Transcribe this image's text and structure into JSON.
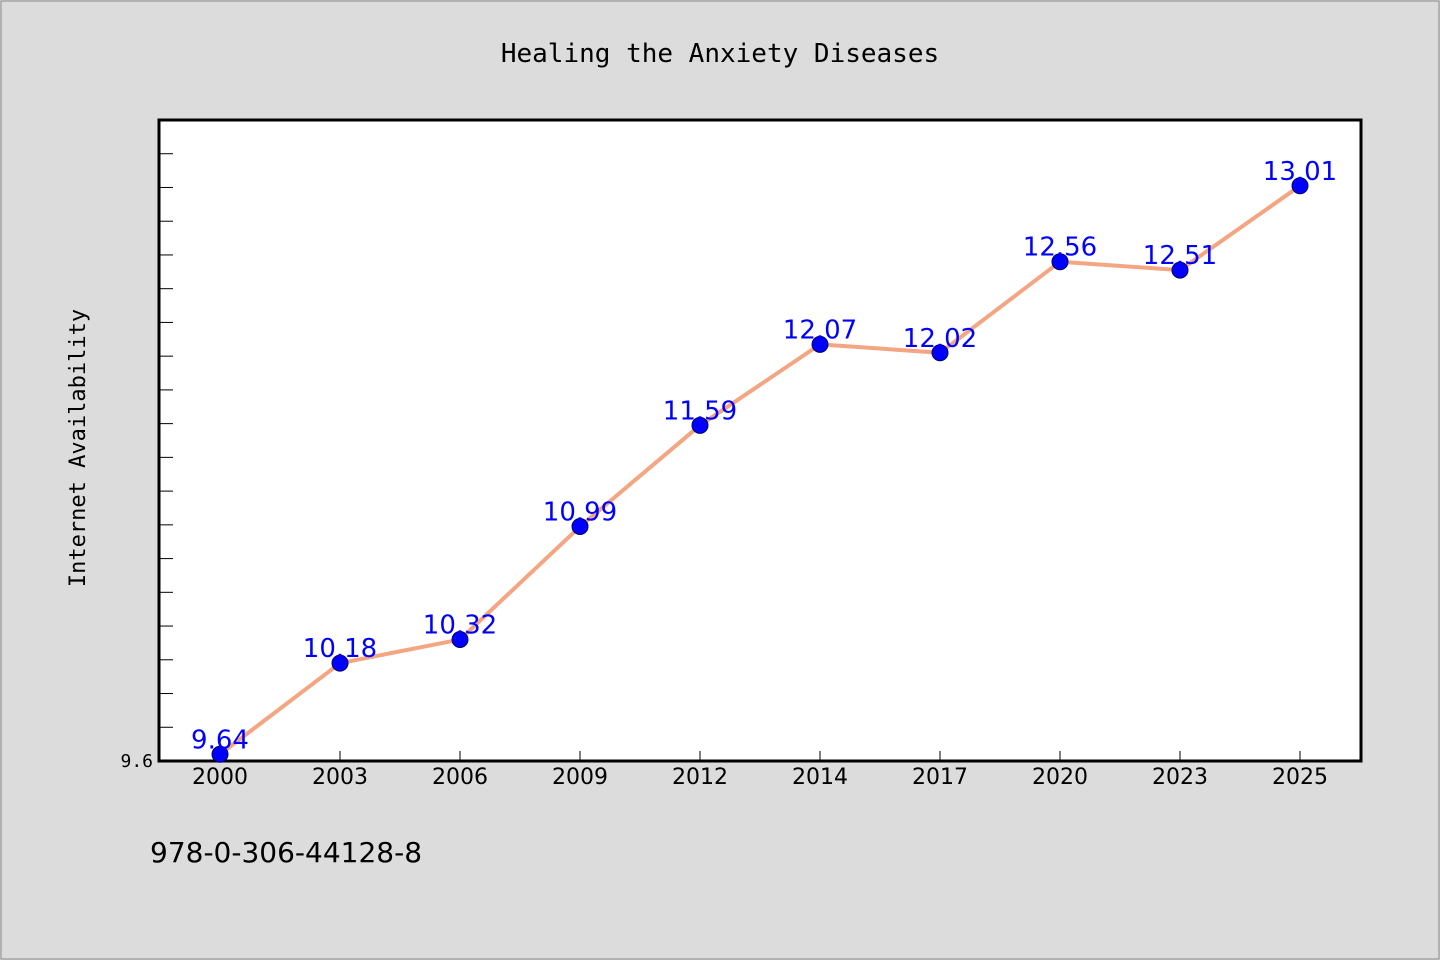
{
  "chart_data": {
    "type": "line",
    "title": "Healing the Anxiety Diseases",
    "ylabel": "Internet Availability",
    "xlabel": "",
    "categories": [
      "2000",
      "2003",
      "2006",
      "2009",
      "2012",
      "2014",
      "2017",
      "2020",
      "2023",
      "2025"
    ],
    "series": [
      {
        "values": [
          9.64,
          10.18,
          10.32,
          10.99,
          11.59,
          12.07,
          12.02,
          12.56,
          12.51,
          13.01
        ],
        "labels": [
          "9.64",
          "10.18",
          "10.32",
          "10.99",
          "11.59",
          "12.07",
          "12.02",
          "12.56",
          "12.51",
          "13.01"
        ]
      }
    ],
    "ylim": [
      9.6,
      13.4
    ],
    "y_tick_labels": [
      "9.6"
    ],
    "grid": false,
    "line_color": "#f4a582",
    "marker_color": "#0000ff",
    "label_color": "#0000ff"
  },
  "footer": {
    "isbn": "978-0-306-44128-8"
  }
}
